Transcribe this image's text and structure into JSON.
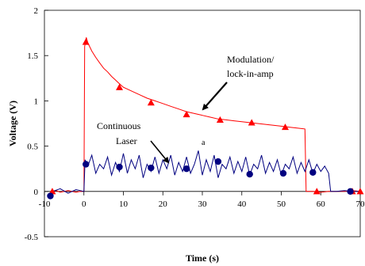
{
  "chart_data": {
    "type": "line",
    "title": "",
    "xlabel": "Time (s)",
    "ylabel": "Voltage (V)",
    "xlim": [
      -10,
      70
    ],
    "ylim": [
      -0.5,
      2
    ],
    "x_ticks": [
      -10,
      0,
      10,
      20,
      30,
      40,
      50,
      60,
      70
    ],
    "x_tick_labels": [
      "-10",
      "0",
      "10",
      "20",
      "30",
      "40",
      "50",
      "60",
      "70"
    ],
    "y_ticks": [
      -0.5,
      0,
      0.5,
      1,
      1.5,
      2
    ],
    "y_tick_labels": [
      "-0.5",
      "0",
      "0.5",
      "1",
      "1.5",
      "2"
    ],
    "grid": false,
    "series": [
      {
        "name": "Modulation/lock-in-amp",
        "color": "#ff0000",
        "marker": "triangle",
        "points": [
          [
            -8,
            0.0
          ],
          [
            -7,
            0.01
          ],
          [
            -6,
            -0.01
          ],
          [
            -5,
            0.0
          ],
          [
            -4,
            0.01
          ],
          [
            -3,
            0.0
          ],
          [
            -2,
            -0.01
          ],
          [
            -1,
            0.0
          ],
          [
            0,
            0.0
          ],
          [
            0.2,
            1.6
          ],
          [
            0.6,
            1.7
          ],
          [
            1,
            1.64
          ],
          [
            2,
            1.55
          ],
          [
            3,
            1.48
          ],
          [
            4,
            1.42
          ],
          [
            5,
            1.36
          ],
          [
            6,
            1.32
          ],
          [
            7,
            1.27
          ],
          [
            8,
            1.23
          ],
          [
            9,
            1.19
          ],
          [
            10,
            1.15
          ],
          [
            12,
            1.11
          ],
          [
            14,
            1.07
          ],
          [
            16,
            1.03
          ],
          [
            18,
            1.0
          ],
          [
            20,
            0.97
          ],
          [
            22,
            0.94
          ],
          [
            24,
            0.91
          ],
          [
            26,
            0.88
          ],
          [
            28,
            0.86
          ],
          [
            30,
            0.84
          ],
          [
            32,
            0.82
          ],
          [
            34,
            0.8
          ],
          [
            36,
            0.79
          ],
          [
            38,
            0.78
          ],
          [
            40,
            0.77
          ],
          [
            42,
            0.76
          ],
          [
            44,
            0.75
          ],
          [
            46,
            0.74
          ],
          [
            48,
            0.73
          ],
          [
            50,
            0.72
          ],
          [
            52,
            0.71
          ],
          [
            54,
            0.7
          ],
          [
            56,
            0.69
          ],
          [
            56.3,
            0.0
          ],
          [
            58,
            0.0
          ],
          [
            60,
            -0.01
          ],
          [
            62,
            0.0
          ],
          [
            64,
            0.0
          ],
          [
            66,
            0.0
          ],
          [
            68,
            0.01
          ],
          [
            70,
            0.0
          ]
        ],
        "markers": [
          [
            -8,
            0.0
          ],
          [
            0.5,
            1.65
          ],
          [
            9,
            1.15
          ],
          [
            17,
            0.98
          ],
          [
            26,
            0.85
          ],
          [
            34.5,
            0.79
          ],
          [
            42.5,
            0.76
          ],
          [
            51,
            0.71
          ],
          [
            59,
            0.0
          ],
          [
            68,
            0.0
          ],
          [
            70,
            0.0
          ]
        ]
      },
      {
        "name": "Continuous Laser",
        "color": "#000080",
        "marker": "circle",
        "points": [
          [
            -8,
            0.0
          ],
          [
            -6,
            0.03
          ],
          [
            -4,
            -0.02
          ],
          [
            -2,
            0.02
          ],
          [
            0,
            0.0
          ],
          [
            0.3,
            0.35
          ],
          [
            1,
            0.28
          ],
          [
            2,
            0.4
          ],
          [
            3,
            0.2
          ],
          [
            4,
            0.3
          ],
          [
            5,
            0.25
          ],
          [
            6,
            0.38
          ],
          [
            7,
            0.18
          ],
          [
            8,
            0.32
          ],
          [
            9,
            0.22
          ],
          [
            10,
            0.42
          ],
          [
            11,
            0.2
          ],
          [
            12,
            0.35
          ],
          [
            13,
            0.25
          ],
          [
            14,
            0.4
          ],
          [
            15,
            0.15
          ],
          [
            16,
            0.3
          ],
          [
            17,
            0.22
          ],
          [
            18,
            0.38
          ],
          [
            19,
            0.2
          ],
          [
            20,
            0.35
          ],
          [
            21,
            0.25
          ],
          [
            22,
            0.4
          ],
          [
            23,
            0.18
          ],
          [
            24,
            0.32
          ],
          [
            25,
            0.22
          ],
          [
            26,
            0.38
          ],
          [
            27,
            0.2
          ],
          [
            28,
            0.3
          ],
          [
            29,
            0.45
          ],
          [
            30,
            0.18
          ],
          [
            31,
            0.35
          ],
          [
            32,
            0.22
          ],
          [
            33,
            0.4
          ],
          [
            34,
            0.15
          ],
          [
            35,
            0.3
          ],
          [
            36,
            0.25
          ],
          [
            37,
            0.38
          ],
          [
            38,
            0.2
          ],
          [
            39,
            0.33
          ],
          [
            40,
            0.22
          ],
          [
            41,
            0.38
          ],
          [
            42,
            0.18
          ],
          [
            43,
            0.3
          ],
          [
            44,
            0.25
          ],
          [
            45,
            0.4
          ],
          [
            46,
            0.2
          ],
          [
            47,
            0.32
          ],
          [
            48,
            0.22
          ],
          [
            49,
            0.35
          ],
          [
            50,
            0.18
          ],
          [
            51,
            0.3
          ],
          [
            52,
            0.25
          ],
          [
            53,
            0.38
          ],
          [
            54,
            0.2
          ],
          [
            55,
            0.32
          ],
          [
            56,
            0.22
          ],
          [
            57,
            0.35
          ],
          [
            58,
            0.2
          ],
          [
            59,
            0.3
          ],
          [
            60,
            0.22
          ],
          [
            61,
            0.28
          ],
          [
            62,
            0.2
          ],
          [
            62.5,
            0.0
          ],
          [
            64,
            0.0
          ],
          [
            66,
            0.01
          ],
          [
            68,
            0.0
          ],
          [
            70,
            0.0
          ]
        ],
        "markers": [
          [
            -8.5,
            -0.05
          ],
          [
            0.5,
            0.3
          ],
          [
            9,
            0.27
          ],
          [
            17,
            0.26
          ],
          [
            26,
            0.25
          ],
          [
            34,
            0.33
          ],
          [
            42,
            0.19
          ],
          [
            50.5,
            0.2
          ],
          [
            58,
            0.21
          ],
          [
            67.5,
            0.0
          ]
        ]
      }
    ],
    "annotations": [
      {
        "lines": [
          "Modulation/",
          "lock-in-amp"
        ],
        "target": [
          47,
          0.88
        ]
      },
      {
        "lines": [
          "Continuous",
          "Laser"
        ],
        "target": [
          22,
          0.25
        ]
      },
      {
        "text": "a",
        "x": 30,
        "y": 0.42
      }
    ]
  }
}
